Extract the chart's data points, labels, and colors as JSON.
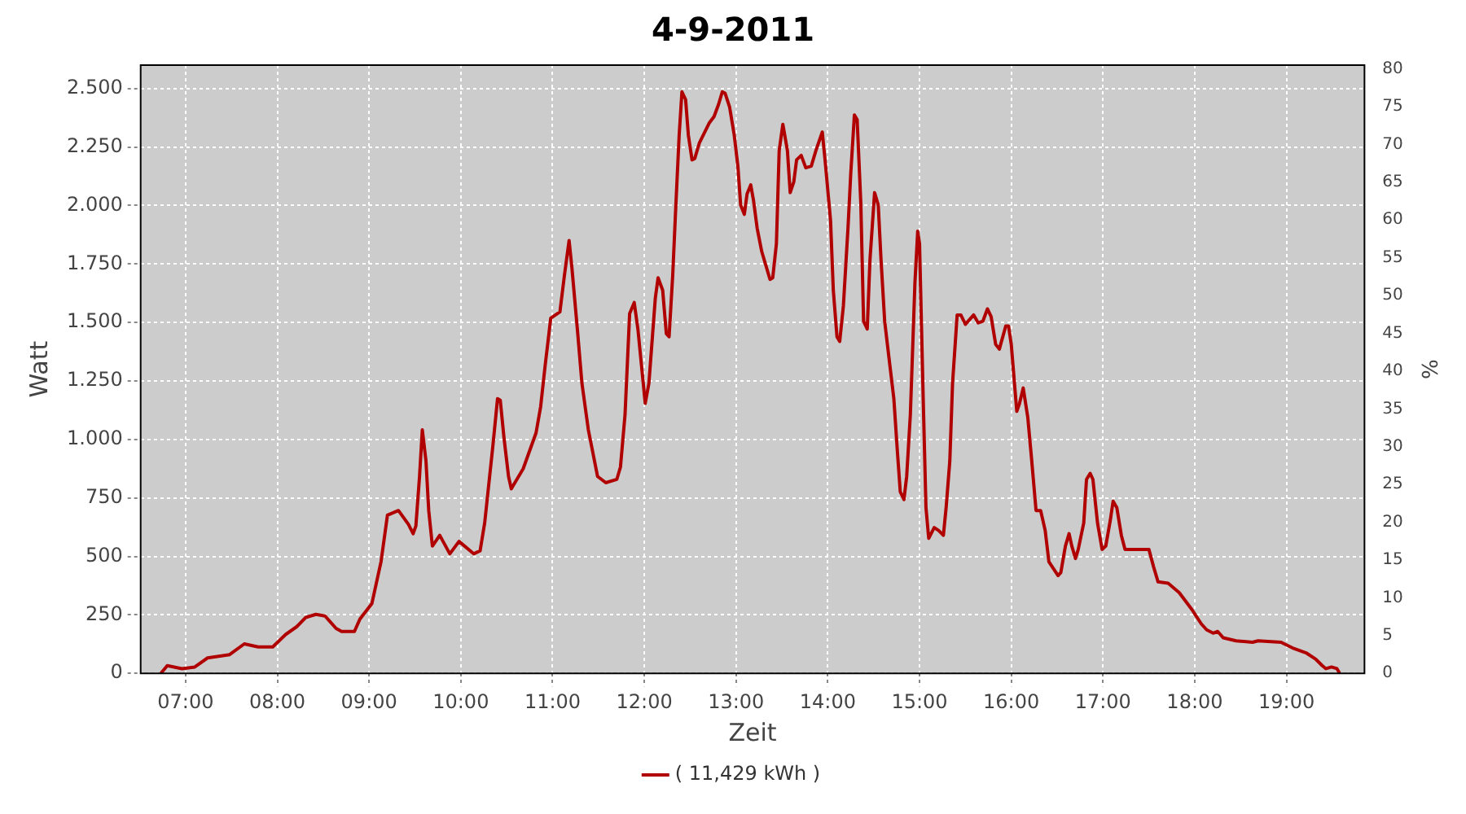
{
  "chart_data": {
    "type": "line",
    "title": "4-9-2011",
    "xlabel": "Zeit",
    "ylabel": "Watt",
    "y2label": "%",
    "xlim": [
      6.51,
      19.85
    ],
    "xticks": [
      {
        "value": 7,
        "label": "07:00"
      },
      {
        "value": 8,
        "label": "08:00"
      },
      {
        "value": 9,
        "label": "09:00"
      },
      {
        "value": 10,
        "label": "10:00"
      },
      {
        "value": 11,
        "label": "11:00"
      },
      {
        "value": 12,
        "label": "12:00"
      },
      {
        "value": 13,
        "label": "13:00"
      },
      {
        "value": 14,
        "label": "14:00"
      },
      {
        "value": 15,
        "label": "15:00"
      },
      {
        "value": 16,
        "label": "16:00"
      },
      {
        "value": 17,
        "label": "17:00"
      },
      {
        "value": 18,
        "label": "18:00"
      },
      {
        "value": 19,
        "label": "19:00"
      }
    ],
    "ylim": [
      0,
      2600
    ],
    "yticks": [
      0,
      {
        "value": 250,
        "label": "250"
      },
      {
        "value": 500,
        "label": "500"
      },
      {
        "value": 750,
        "label": "750"
      },
      {
        "value": 1000,
        "label": "1.000"
      },
      {
        "value": 1250,
        "label": "1.250"
      },
      {
        "value": 1500,
        "label": "1.500"
      },
      {
        "value": 1750,
        "label": "1.750"
      },
      {
        "value": 2000,
        "label": "2.000"
      },
      {
        "value": 2250,
        "label": "2.250"
      },
      {
        "value": 2500,
        "label": "2.500"
      }
    ],
    "y2lim": [
      0,
      80.5
    ],
    "y2ticks": [
      0,
      5,
      10,
      15,
      20,
      25,
      30,
      35,
      40,
      45,
      50,
      55,
      60,
      65,
      70,
      75,
      80
    ],
    "grid": true,
    "legend": "bottom",
    "marker": "none",
    "line_style": "solid",
    "series": [
      {
        "name": "( 11,429 kWh )",
        "color": "#b00000",
        "x": [
          6.73,
          6.8,
          6.96,
          7.1,
          7.24,
          7.48,
          7.64,
          7.79,
          7.95,
          8.09,
          8.21,
          8.31,
          8.42,
          8.52,
          8.64,
          8.7,
          8.84,
          8.9,
          9.03,
          9.13,
          9.2,
          9.32,
          9.43,
          9.48,
          9.51,
          9.55,
          9.58,
          9.62,
          9.65,
          9.69,
          9.77,
          9.88,
          9.98,
          10.14,
          10.21,
          10.26,
          10.35,
          10.4,
          10.43,
          10.47,
          10.52,
          10.55,
          10.68,
          10.82,
          10.87,
          10.92,
          10.98,
          11.08,
          11.13,
          11.18,
          11.21,
          11.27,
          11.32,
          11.39,
          11.49,
          11.58,
          11.7,
          11.74,
          11.79,
          11.84,
          11.89,
          11.93,
          11.98,
          12.01,
          12.05,
          12.12,
          12.15,
          12.2,
          12.24,
          12.27,
          12.31,
          12.34,
          12.38,
          12.41,
          12.45,
          12.48,
          12.52,
          12.55,
          12.6,
          12.71,
          12.76,
          12.81,
          12.85,
          12.88,
          12.93,
          12.98,
          13.02,
          13.05,
          13.09,
          13.12,
          13.16,
          13.19,
          13.23,
          13.28,
          13.33,
          13.37,
          13.4,
          13.44,
          13.47,
          13.51,
          13.56,
          13.59,
          13.63,
          13.66,
          13.71,
          13.76,
          13.82,
          13.87,
          13.94,
          13.97,
          14.03,
          14.06,
          14.1,
          14.13,
          14.17,
          14.22,
          14.25,
          14.29,
          14.32,
          14.36,
          14.39,
          14.43,
          14.46,
          14.51,
          14.55,
          14.58,
          14.62,
          14.67,
          14.72,
          14.76,
          14.79,
          14.83,
          14.86,
          14.9,
          14.95,
          14.98,
          15.0,
          15.04,
          15.07,
          15.1,
          15.16,
          15.21,
          15.26,
          15.29,
          15.33,
          15.36,
          15.41,
          15.45,
          15.5,
          15.59,
          15.64,
          15.69,
          15.74,
          15.78,
          15.83,
          15.87,
          15.94,
          15.97,
          16.0,
          16.06,
          16.09,
          16.13,
          16.18,
          16.22,
          16.27,
          16.32,
          16.37,
          16.41,
          16.51,
          16.54,
          16.59,
          16.63,
          16.66,
          16.7,
          16.73,
          16.79,
          16.82,
          16.86,
          16.89,
          16.94,
          16.99,
          17.03,
          17.08,
          17.11,
          17.15,
          17.2,
          17.24,
          17.5,
          17.55,
          17.6,
          17.71,
          17.83,
          17.97,
          18.07,
          18.13,
          18.2,
          18.25,
          18.31,
          18.45,
          18.63,
          18.69,
          18.94,
          19.08,
          19.22,
          19.32,
          19.39,
          19.43,
          19.49,
          19.55,
          19.58
        ],
        "values": [
          0,
          33,
          20,
          27,
          66,
          80,
          126,
          113,
          113,
          166,
          199,
          239,
          252,
          245,
          192,
          179,
          179,
          232,
          298,
          477,
          676,
          696,
          636,
          597,
          630,
          842,
          1041,
          908,
          696,
          544,
          590,
          511,
          564,
          511,
          524,
          643,
          975,
          1174,
          1167,
          1008,
          842,
          789,
          875,
          1028,
          1140,
          1319,
          1518,
          1545,
          1704,
          1850,
          1737,
          1472,
          1240,
          1041,
          842,
          815,
          829,
          882,
          1107,
          1538,
          1585,
          1472,
          1273,
          1154,
          1240,
          1604,
          1691,
          1638,
          1452,
          1439,
          1704,
          1969,
          2301,
          2486,
          2453,
          2301,
          2195,
          2201,
          2267,
          2354,
          2380,
          2433,
          2486,
          2480,
          2420,
          2301,
          2168,
          2002,
          1962,
          2049,
          2088,
          2022,
          1903,
          1803,
          1737,
          1684,
          1691,
          1837,
          2234,
          2347,
          2234,
          2055,
          2102,
          2195,
          2214,
          2161,
          2168,
          2234,
          2314,
          2195,
          1936,
          1638,
          1439,
          1419,
          1571,
          1903,
          2135,
          2387,
          2367,
          2009,
          1505,
          1472,
          1770,
          2055,
          2002,
          1770,
          1505,
          1339,
          1174,
          941,
          776,
          743,
          842,
          1107,
          1671,
          1890,
          1837,
          1174,
          709,
          577,
          623,
          610,
          590,
          709,
          908,
          1240,
          1532,
          1532,
          1492,
          1532,
          1498,
          1505,
          1558,
          1525,
          1406,
          1386,
          1485,
          1485,
          1406,
          1120,
          1154,
          1220,
          1094,
          922,
          696,
          696,
          610,
          477,
          418,
          431,
          544,
          597,
          544,
          491,
          530,
          643,
          829,
          855,
          829,
          643,
          530,
          544,
          656,
          736,
          709,
          590,
          530,
          530,
          457,
          391,
          385,
          345,
          272,
          212,
          186,
          172,
          179,
          152,
          139,
          133,
          139,
          133,
          106,
          86,
          60,
          33,
          20,
          27,
          20,
          0
        ]
      }
    ]
  }
}
